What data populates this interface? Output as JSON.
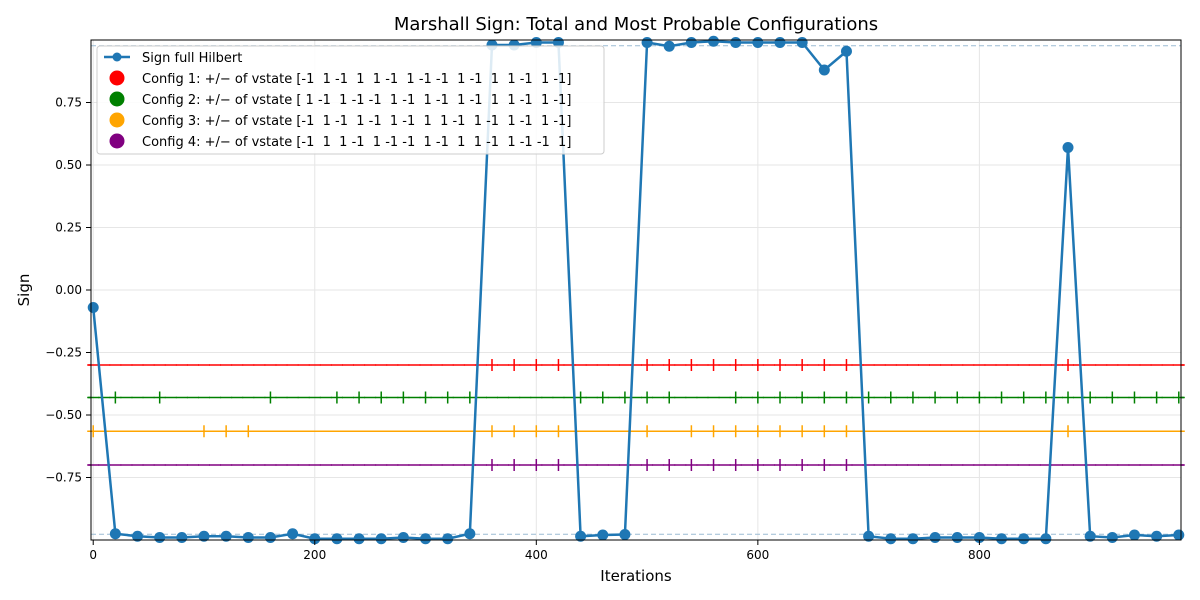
{
  "chart_data": {
    "type": "line",
    "title": "Marshall Sign: Total and Most Probable Configurations",
    "xlabel": "Iterations",
    "ylabel": "Sign",
    "xlim": [
      -2,
      982
    ],
    "ylim": [
      -1.0,
      1.0
    ],
    "grid": true,
    "legend_position": "upper-left",
    "x_ticks": [
      0,
      200,
      400,
      600,
      800
    ],
    "x_tick_labels": [
      "0",
      "200",
      "400",
      "600",
      "800"
    ],
    "y_ticks": [
      -0.75,
      -0.5,
      -0.25,
      0.0,
      0.25,
      0.5,
      0.75
    ],
    "y_tick_labels": [
      "−0.75",
      "−0.50",
      "−0.25",
      "0.00",
      "0.25",
      "0.50",
      "0.75"
    ],
    "reference_lines": [
      0.977,
      -0.977
    ],
    "series": [
      {
        "name": "Sign full Hilbert",
        "color": "#1f77b4",
        "x": [
          0,
          20,
          40,
          60,
          80,
          100,
          120,
          140,
          160,
          180,
          200,
          220,
          240,
          260,
          280,
          300,
          320,
          340,
          360,
          380,
          400,
          420,
          440,
          460,
          480,
          500,
          520,
          540,
          560,
          580,
          600,
          620,
          640,
          660,
          680,
          700,
          720,
          740,
          760,
          780,
          800,
          820,
          840,
          860,
          880,
          900,
          920,
          940,
          960,
          980
        ],
        "values": [
          -0.07,
          -0.975,
          -0.985,
          -0.99,
          -0.99,
          -0.985,
          -0.985,
          -0.99,
          -0.99,
          -0.975,
          -0.995,
          -0.995,
          -0.995,
          -0.995,
          -0.99,
          -0.995,
          -0.995,
          -0.975,
          0.98,
          0.98,
          0.99,
          0.99,
          -0.985,
          -0.98,
          -0.978,
          0.99,
          0.975,
          0.99,
          0.995,
          0.99,
          0.99,
          0.99,
          0.99,
          0.88,
          0.955,
          -0.985,
          -0.995,
          -0.995,
          -0.99,
          -0.99,
          -0.99,
          -0.995,
          -0.995,
          -0.995,
          0.57,
          -0.985,
          -0.99,
          -0.98,
          -0.985,
          -0.98
        ]
      }
    ],
    "configs": [
      {
        "name": "Config 1: +/− of vstate [-1  1 -1  1  1 -1  1 -1 -1  1 -1  1  1 -1  1 -1]",
        "color": "#ff0000",
        "level": -0.3,
        "symbols": [
          "−",
          "−",
          "−",
          "−",
          "−",
          "−",
          "−",
          "−",
          "−",
          "−",
          "−",
          "−",
          "−",
          "−",
          "−",
          "−",
          "−",
          "−",
          "+",
          "+",
          "+",
          "+",
          "−",
          "−",
          "−",
          "+",
          "+",
          "+",
          "+",
          "+",
          "+",
          "+",
          "+",
          "+",
          "+",
          "−",
          "−",
          "−",
          "−",
          "−",
          "−",
          "−",
          "−",
          "−",
          "+",
          "−",
          "−",
          "−",
          "−",
          "−"
        ]
      },
      {
        "name": "Config 2: +/− of vstate [ 1 -1  1 -1 -1  1 -1  1 -1  1 -1  1  1 -1  1 -1]",
        "color": "#008000",
        "level": -0.43,
        "symbols": [
          "−",
          "+",
          "−",
          "+",
          "−",
          "−",
          "−",
          "−",
          "+",
          "−",
          "−",
          "+",
          "+",
          "+",
          "+",
          "+",
          "+",
          "+",
          "−",
          "−",
          "−",
          "−",
          "+",
          "+",
          "+",
          "+",
          "+",
          "−",
          "−",
          "+",
          "+",
          "+",
          "+",
          "+",
          "+",
          "+",
          "+",
          "+",
          "+",
          "+",
          "+",
          "+",
          "+",
          "+",
          "+",
          "+",
          "+",
          "+",
          "+",
          "+"
        ]
      },
      {
        "name": "Config 3: +/− of vstate [-1  1 -1  1 -1  1 -1  1  1 -1  1 -1  1 -1  1 -1]",
        "color": "#ffa500",
        "level": -0.565,
        "symbols": [
          "+",
          "−",
          "−",
          "−",
          "−",
          "+",
          "+",
          "+",
          "−",
          "−",
          "−",
          "−",
          "−",
          "−",
          "−",
          "−",
          "−",
          "−",
          "+",
          "+",
          "+",
          "+",
          "−",
          "−",
          "−",
          "+",
          "−",
          "+",
          "+",
          "+",
          "+",
          "+",
          "+",
          "+",
          "+",
          "−",
          "−",
          "−",
          "−",
          "−",
          "−",
          "−",
          "−",
          "−",
          "+",
          "−",
          "−",
          "−",
          "−",
          "−"
        ]
      },
      {
        "name": "Config 4: +/− of vstate [-1  1  1 -1  1 -1 -1  1 -1  1  1 -1  1 -1 -1  1]",
        "color": "#800080",
        "level": -0.7,
        "symbols": [
          "−",
          "−",
          "−",
          "−",
          "−",
          "−",
          "−",
          "−",
          "−",
          "−",
          "−",
          "−",
          "−",
          "−",
          "−",
          "−",
          "−",
          "−",
          "+",
          "+",
          "+",
          "+",
          "−",
          "−",
          "−",
          "+",
          "+",
          "+",
          "+",
          "+",
          "+",
          "+",
          "+",
          "+",
          "+",
          "−",
          "−",
          "−",
          "−",
          "−",
          "−",
          "−",
          "−",
          "−",
          "−",
          "−",
          "−",
          "−",
          "−",
          "−"
        ]
      }
    ]
  }
}
